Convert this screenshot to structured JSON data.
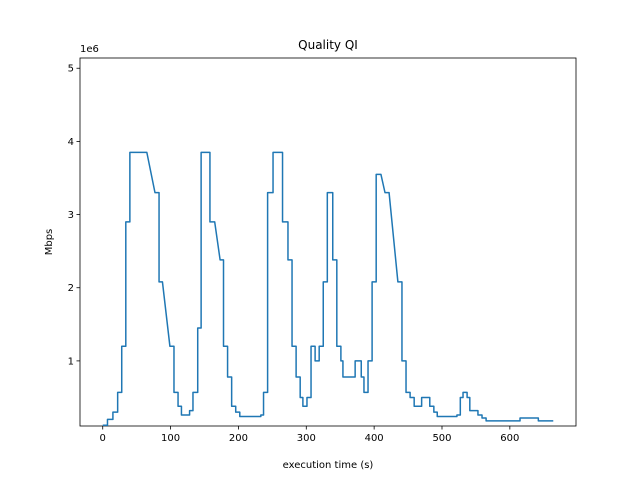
{
  "chart_data": {
    "type": "line",
    "title": "Quality QI",
    "x_label": "execution time (s)",
    "y_label": "Mbps",
    "y_offset_label": "1e6",
    "color": "#1f77b4",
    "xlim": [
      -33.5,
      697.5
    ],
    "xticks": [
      0,
      100,
      200,
      300,
      400,
      500,
      600
    ],
    "ylim": [
      0.11,
      5.14
    ],
    "yticks": [
      1,
      2,
      3,
      4,
      5
    ],
    "x": [
      0,
      7,
      7,
      15,
      15,
      22,
      22,
      28,
      28,
      34,
      34,
      40,
      40,
      65,
      77,
      83,
      83,
      88,
      99,
      105,
      105,
      111,
      111,
      116,
      116,
      128,
      128,
      133,
      133,
      140,
      140,
      145,
      145,
      158,
      158,
      165,
      173,
      178,
      178,
      184,
      184,
      190,
      190,
      196,
      196,
      202,
      202,
      233,
      233,
      237,
      237,
      243,
      243,
      251,
      251,
      265,
      265,
      273,
      273,
      279,
      279,
      285,
      285,
      291,
      291,
      295,
      295,
      301,
      301,
      307,
      307,
      313,
      313,
      319,
      319,
      325,
      325,
      331,
      331,
      339,
      339,
      345,
      345,
      351,
      351,
      354,
      354,
      372,
      372,
      381,
      381,
      385,
      385,
      391,
      391,
      397,
      397,
      403,
      403,
      410,
      416,
      422,
      435,
      441,
      441,
      447,
      447,
      453,
      453,
      459,
      459,
      470,
      470,
      482,
      482,
      488,
      488,
      493,
      493,
      522,
      522,
      527,
      527,
      531,
      531,
      537,
      537,
      541,
      541,
      553,
      553,
      559,
      559,
      565,
      565,
      615,
      615,
      642,
      642,
      664
    ],
    "values": [
      0.12,
      0.12,
      0.2,
      0.2,
      0.3,
      0.3,
      0.57,
      0.57,
      1.2,
      1.2,
      2.9,
      2.9,
      3.85,
      3.85,
      3.3,
      3.3,
      2.08,
      2.08,
      1.2,
      1.2,
      0.57,
      0.57,
      0.38,
      0.38,
      0.26,
      0.26,
      0.32,
      0.32,
      0.57,
      0.57,
      1.45,
      1.45,
      3.85,
      3.85,
      2.9,
      2.9,
      2.38,
      2.38,
      1.2,
      1.2,
      0.78,
      0.78,
      0.38,
      0.38,
      0.3,
      0.3,
      0.24,
      0.24,
      0.26,
      0.26,
      0.57,
      0.57,
      3.3,
      3.3,
      3.85,
      3.85,
      2.9,
      2.9,
      2.38,
      2.38,
      1.2,
      1.2,
      0.78,
      0.78,
      0.5,
      0.5,
      0.38,
      0.38,
      0.5,
      0.5,
      1.2,
      1.2,
      1.0,
      1.0,
      1.2,
      1.2,
      2.08,
      2.08,
      3.3,
      3.3,
      2.38,
      2.38,
      1.2,
      1.2,
      1.0,
      1.0,
      0.78,
      0.78,
      1.0,
      1.0,
      0.78,
      0.78,
      0.57,
      0.57,
      1.0,
      1.0,
      2.08,
      2.08,
      3.55,
      3.55,
      3.3,
      3.3,
      2.08,
      2.08,
      1.0,
      1.0,
      0.57,
      0.57,
      0.5,
      0.5,
      0.38,
      0.38,
      0.5,
      0.5,
      0.38,
      0.38,
      0.3,
      0.3,
      0.24,
      0.24,
      0.26,
      0.26,
      0.5,
      0.5,
      0.57,
      0.57,
      0.5,
      0.5,
      0.32,
      0.32,
      0.26,
      0.26,
      0.22,
      0.22,
      0.18,
      0.18,
      0.22,
      0.22,
      0.18,
      0.18
    ]
  }
}
